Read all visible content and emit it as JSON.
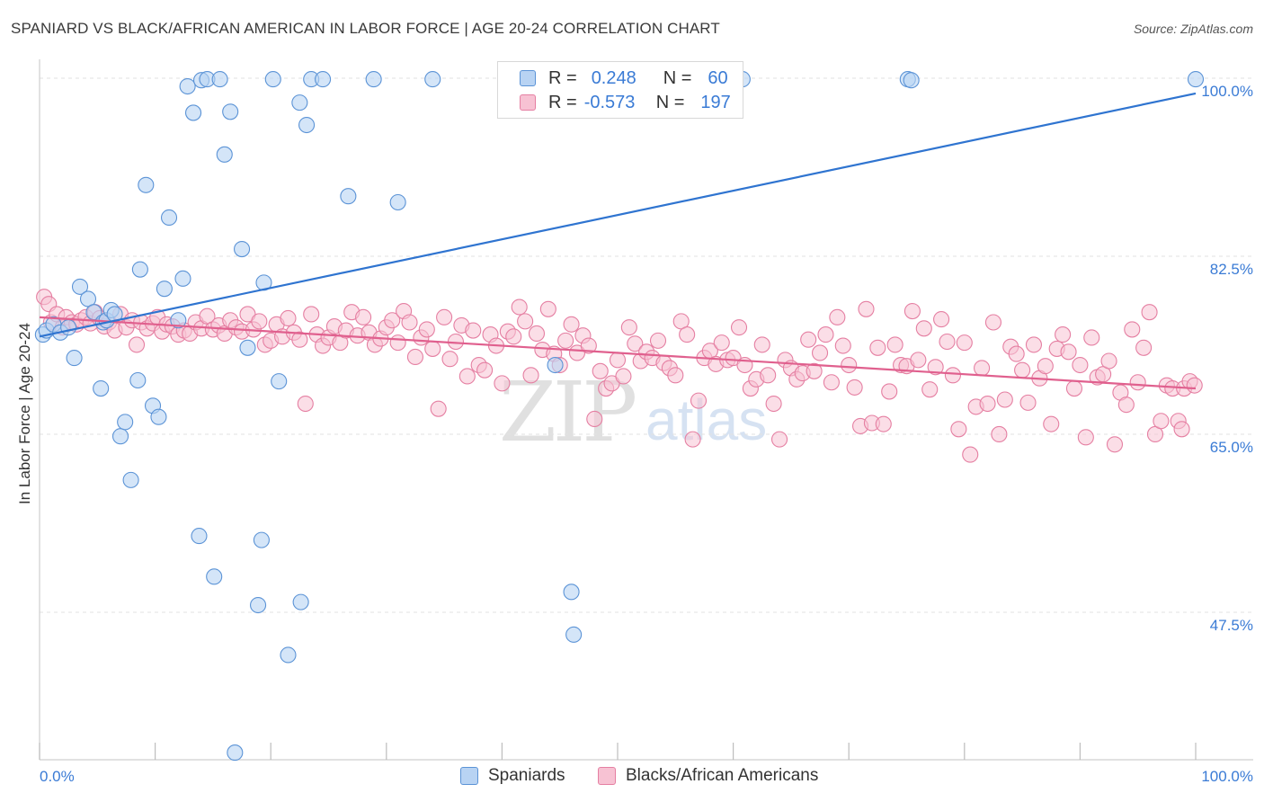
{
  "title": "SPANIARD VS BLACK/AFRICAN AMERICAN IN LABOR FORCE | AGE 20-24 CORRELATION CHART",
  "source": "Source: ZipAtlas.com",
  "watermark": {
    "zip": "ZIP",
    "atlas": "atlas"
  },
  "colors": {
    "blue_fill": "#b8d3f3",
    "blue_stroke": "#5b93d6",
    "blue_line": "#2f74d0",
    "pink_fill": "#f7c2d3",
    "pink_stroke": "#e57fa2",
    "pink_line": "#e0608e",
    "tick_label": "#3a7bd5",
    "grid": "#e2e2e2"
  },
  "legend": {
    "rows": [
      {
        "r_label": "R =",
        "r_value": "0.248",
        "n_label": "N =",
        "n_value": "60"
      },
      {
        "r_label": "R =",
        "r_value": "-0.573",
        "n_label": "N =",
        "n_value": "197"
      }
    ]
  },
  "bottom_legend": {
    "series1": "Spaniards",
    "series2": "Blacks/African Americans"
  },
  "chart_data": {
    "type": "scatter",
    "title": "SPANIARD VS BLACK/AFRICAN AMERICAN IN LABOR FORCE | AGE 20-24 CORRELATION CHART",
    "xlabel": "",
    "ylabel": "In Labor Force | Age 20-24",
    "xlim": [
      0,
      100
    ],
    "ylim": [
      33,
      101.5
    ],
    "x_tick_labels": [
      "0.0%",
      "100.0%"
    ],
    "y_ticks": [
      47.5,
      65.0,
      82.5,
      100.0
    ],
    "y_tick_labels": [
      "47.5%",
      "65.0%",
      "82.5%",
      "100.0%"
    ],
    "grid": true,
    "legend_position": "top-center",
    "series": [
      {
        "name": "Spaniards",
        "r": 0.248,
        "n": 60,
        "trend": {
          "x": [
            0,
            100
          ],
          "y": [
            74.6,
            98.5
          ]
        },
        "points": [
          [
            0.3,
            74.8
          ],
          [
            0.6,
            75.2
          ],
          [
            1.2,
            75.8
          ],
          [
            1.8,
            75.0
          ],
          [
            2.5,
            75.5
          ],
          [
            3.0,
            72.5
          ],
          [
            3.5,
            79.5
          ],
          [
            4.2,
            78.3
          ],
          [
            4.7,
            77.0
          ],
          [
            5.3,
            69.5
          ],
          [
            5.5,
            76.0
          ],
          [
            5.8,
            76.2
          ],
          [
            6.2,
            77.2
          ],
          [
            6.5,
            76.8
          ],
          [
            7.0,
            64.8
          ],
          [
            7.4,
            66.2
          ],
          [
            7.9,
            60.5
          ],
          [
            8.5,
            70.3
          ],
          [
            8.7,
            81.2
          ],
          [
            9.2,
            89.5
          ],
          [
            9.8,
            67.8
          ],
          [
            10.3,
            66.7
          ],
          [
            10.8,
            79.3
          ],
          [
            11.2,
            86.3
          ],
          [
            12.0,
            76.2
          ],
          [
            12.4,
            80.3
          ],
          [
            12.8,
            99.2
          ],
          [
            13.3,
            96.6
          ],
          [
            13.8,
            55.0
          ],
          [
            14.0,
            99.8
          ],
          [
            14.5,
            99.9
          ],
          [
            15.1,
            51.0
          ],
          [
            15.6,
            99.9
          ],
          [
            16.0,
            92.5
          ],
          [
            16.5,
            96.7
          ],
          [
            16.9,
            33.7
          ],
          [
            17.5,
            83.2
          ],
          [
            18.0,
            73.5
          ],
          [
            18.9,
            48.2
          ],
          [
            19.4,
            79.9
          ],
          [
            19.2,
            54.6
          ],
          [
            20.2,
            99.9
          ],
          [
            20.7,
            70.2
          ],
          [
            21.5,
            43.3
          ],
          [
            22.5,
            97.6
          ],
          [
            22.6,
            48.5
          ],
          [
            23.1,
            95.4
          ],
          [
            23.5,
            99.9
          ],
          [
            24.5,
            99.9
          ],
          [
            26.7,
            88.4
          ],
          [
            28.9,
            99.9
          ],
          [
            31.0,
            87.8
          ],
          [
            34.0,
            99.9
          ],
          [
            44.6,
            71.8
          ],
          [
            46.0,
            49.5
          ],
          [
            46.2,
            45.3
          ],
          [
            60.8,
            99.9
          ],
          [
            75.1,
            99.9
          ],
          [
            75.4,
            99.8
          ],
          [
            100.0,
            99.9
          ]
        ]
      },
      {
        "name": "Blacks/African Americans",
        "r": -0.573,
        "n": 197,
        "trend": {
          "x": [
            0,
            100
          ],
          "y": [
            76.5,
            69.5
          ]
        },
        "points": [
          [
            0.4,
            78.5
          ],
          [
            0.8,
            77.8
          ],
          [
            1.0,
            76.0
          ],
          [
            1.5,
            76.8
          ],
          [
            2.0,
            75.5
          ],
          [
            2.3,
            76.5
          ],
          [
            2.8,
            76.0
          ],
          [
            3.2,
            75.8
          ],
          [
            3.6,
            76.2
          ],
          [
            4.0,
            76.5
          ],
          [
            4.4,
            75.9
          ],
          [
            4.8,
            77.0
          ],
          [
            5.2,
            76.4
          ],
          [
            5.6,
            75.6
          ],
          [
            6.0,
            76.0
          ],
          [
            6.5,
            75.2
          ],
          [
            7.0,
            76.8
          ],
          [
            7.5,
            75.5
          ],
          [
            8.0,
            76.2
          ],
          [
            8.4,
            73.8
          ],
          [
            8.8,
            76.0
          ],
          [
            9.3,
            75.4
          ],
          [
            9.8,
            75.9
          ],
          [
            10.2,
            76.5
          ],
          [
            10.6,
            75.1
          ],
          [
            11.0,
            75.8
          ],
          [
            11.5,
            75.6
          ],
          [
            12.0,
            74.8
          ],
          [
            12.5,
            75.2
          ],
          [
            13.0,
            74.9
          ],
          [
            13.5,
            76.0
          ],
          [
            14.0,
            75.4
          ],
          [
            14.5,
            76.6
          ],
          [
            15.0,
            75.3
          ],
          [
            15.5,
            75.7
          ],
          [
            16.0,
            74.9
          ],
          [
            16.5,
            76.2
          ],
          [
            17.0,
            75.5
          ],
          [
            17.5,
            75.1
          ],
          [
            18.0,
            76.8
          ],
          [
            18.5,
            75.3
          ],
          [
            19.0,
            76.1
          ],
          [
            19.5,
            73.8
          ],
          [
            20.0,
            74.2
          ],
          [
            20.5,
            75.8
          ],
          [
            21.0,
            74.6
          ],
          [
            21.5,
            76.4
          ],
          [
            22.0,
            75.0
          ],
          [
            22.5,
            74.3
          ],
          [
            23.0,
            68.0
          ],
          [
            23.5,
            76.8
          ],
          [
            24.0,
            74.8
          ],
          [
            24.5,
            73.7
          ],
          [
            25.0,
            74.5
          ],
          [
            25.5,
            75.6
          ],
          [
            26.0,
            74.0
          ],
          [
            26.5,
            75.2
          ],
          [
            27.0,
            77.0
          ],
          [
            27.5,
            74.7
          ],
          [
            28.0,
            76.5
          ],
          [
            28.5,
            75.0
          ],
          [
            29.0,
            73.8
          ],
          [
            29.5,
            74.4
          ],
          [
            30.0,
            75.5
          ],
          [
            30.5,
            76.2
          ],
          [
            31.0,
            74.0
          ],
          [
            31.5,
            77.1
          ],
          [
            32.0,
            76.0
          ],
          [
            32.5,
            72.6
          ],
          [
            33.0,
            74.5
          ],
          [
            33.5,
            75.3
          ],
          [
            34.0,
            73.4
          ],
          [
            34.5,
            67.5
          ],
          [
            35.0,
            76.5
          ],
          [
            35.5,
            72.4
          ],
          [
            36.0,
            74.1
          ],
          [
            36.5,
            75.7
          ],
          [
            37.0,
            70.7
          ],
          [
            37.5,
            75.2
          ],
          [
            38.0,
            71.8
          ],
          [
            38.5,
            71.3
          ],
          [
            39.0,
            74.8
          ],
          [
            39.5,
            73.7
          ],
          [
            40.0,
            70.0
          ],
          [
            40.5,
            75.1
          ],
          [
            41.0,
            74.6
          ],
          [
            41.5,
            77.5
          ],
          [
            42.0,
            76.1
          ],
          [
            42.5,
            70.8
          ],
          [
            43.0,
            74.9
          ],
          [
            43.5,
            73.3
          ],
          [
            44.0,
            77.3
          ],
          [
            44.5,
            72.9
          ],
          [
            45.0,
            71.8
          ],
          [
            45.5,
            74.2
          ],
          [
            46.0,
            75.8
          ],
          [
            46.5,
            73.0
          ],
          [
            47.0,
            74.7
          ],
          [
            47.5,
            73.7
          ],
          [
            48.0,
            66.5
          ],
          [
            48.5,
            71.2
          ],
          [
            49.0,
            69.5
          ],
          [
            49.5,
            70.0
          ],
          [
            50.0,
            72.3
          ],
          [
            50.5,
            70.7
          ],
          [
            51.0,
            75.5
          ],
          [
            51.5,
            73.9
          ],
          [
            52.0,
            72.2
          ],
          [
            52.5,
            73.1
          ],
          [
            53.0,
            72.5
          ],
          [
            53.5,
            74.2
          ],
          [
            54.0,
            72.0
          ],
          [
            54.5,
            71.5
          ],
          [
            55.0,
            70.8
          ],
          [
            55.5,
            76.1
          ],
          [
            56.0,
            74.8
          ],
          [
            56.5,
            64.5
          ],
          [
            57.0,
            68.3
          ],
          [
            57.5,
            72.5
          ],
          [
            58.0,
            73.2
          ],
          [
            58.5,
            71.9
          ],
          [
            59.0,
            74.0
          ],
          [
            59.5,
            72.3
          ],
          [
            60.0,
            72.5
          ],
          [
            60.5,
            75.5
          ],
          [
            61.0,
            71.8
          ],
          [
            61.5,
            69.5
          ],
          [
            62.0,
            70.4
          ],
          [
            62.5,
            73.8
          ],
          [
            63.0,
            70.8
          ],
          [
            63.5,
            68.0
          ],
          [
            64.0,
            64.5
          ],
          [
            64.5,
            72.3
          ],
          [
            65.0,
            71.5
          ],
          [
            65.5,
            70.4
          ],
          [
            66.0,
            71.0
          ],
          [
            66.5,
            74.3
          ],
          [
            67.0,
            71.2
          ],
          [
            67.5,
            73.0
          ],
          [
            68.0,
            74.8
          ],
          [
            68.5,
            70.1
          ],
          [
            69.0,
            76.5
          ],
          [
            69.5,
            73.7
          ],
          [
            70.0,
            71.8
          ],
          [
            70.5,
            69.6
          ],
          [
            71.0,
            65.8
          ],
          [
            71.5,
            77.3
          ],
          [
            72.0,
            66.1
          ],
          [
            72.5,
            73.5
          ],
          [
            73.0,
            66.0
          ],
          [
            73.5,
            69.2
          ],
          [
            74.0,
            73.8
          ],
          [
            74.5,
            71.8
          ],
          [
            75.0,
            71.7
          ],
          [
            75.5,
            77.1
          ],
          [
            76.0,
            72.3
          ],
          [
            76.5,
            75.4
          ],
          [
            77.0,
            69.4
          ],
          [
            77.5,
            71.6
          ],
          [
            78.0,
            76.3
          ],
          [
            78.5,
            74.1
          ],
          [
            79.0,
            70.8
          ],
          [
            79.5,
            65.5
          ],
          [
            80.0,
            74.0
          ],
          [
            80.5,
            63.0
          ],
          [
            81.0,
            67.7
          ],
          [
            81.5,
            71.5
          ],
          [
            82.0,
            68.0
          ],
          [
            82.5,
            76.0
          ],
          [
            83.0,
            65.0
          ],
          [
            83.5,
            68.4
          ],
          [
            84.0,
            73.6
          ],
          [
            84.5,
            72.9
          ],
          [
            85.0,
            71.3
          ],
          [
            85.5,
            68.1
          ],
          [
            86.0,
            73.8
          ],
          [
            86.5,
            70.5
          ],
          [
            87.0,
            71.7
          ],
          [
            87.5,
            66.0
          ],
          [
            88.0,
            73.4
          ],
          [
            88.5,
            74.8
          ],
          [
            89.0,
            73.1
          ],
          [
            89.5,
            69.5
          ],
          [
            90.0,
            71.8
          ],
          [
            90.5,
            64.7
          ],
          [
            91.0,
            74.5
          ],
          [
            91.5,
            70.6
          ],
          [
            92.0,
            70.9
          ],
          [
            92.5,
            72.2
          ],
          [
            93.0,
            64.0
          ],
          [
            93.5,
            69.1
          ],
          [
            94.0,
            67.9
          ],
          [
            94.5,
            75.3
          ],
          [
            95.0,
            70.1
          ],
          [
            95.5,
            73.5
          ],
          [
            96.0,
            77.0
          ],
          [
            96.5,
            65.0
          ],
          [
            97.0,
            66.3
          ],
          [
            97.5,
            69.8
          ],
          [
            98.0,
            69.5
          ],
          [
            98.5,
            66.3
          ],
          [
            99.0,
            69.5
          ],
          [
            99.5,
            70.2
          ],
          [
            99.9,
            69.8
          ],
          [
            98.8,
            65.5
          ]
        ]
      }
    ]
  }
}
